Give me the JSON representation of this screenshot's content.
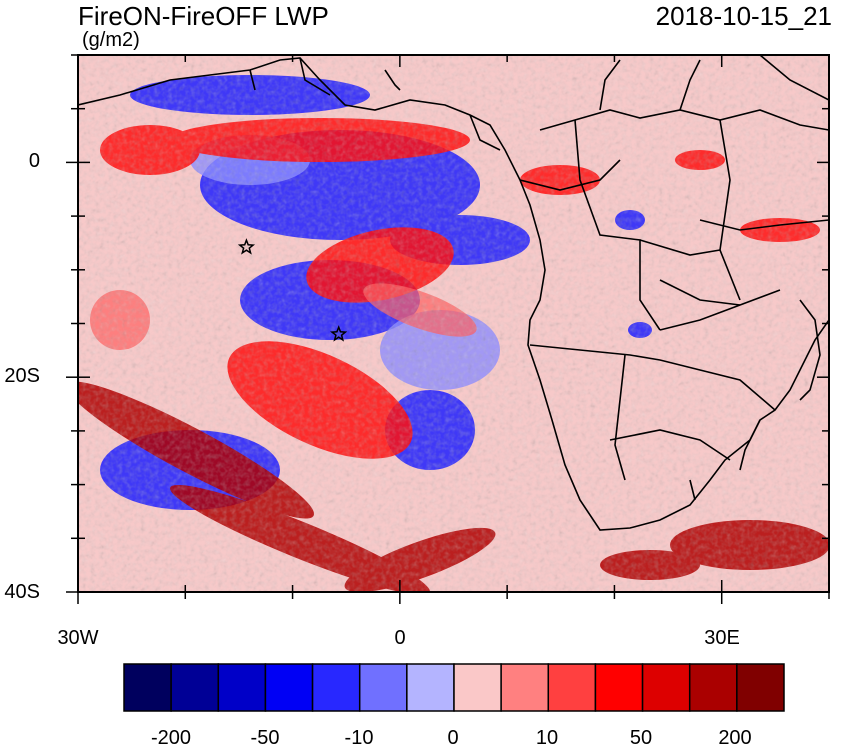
{
  "header": {
    "title": "FireON-FireOFF LWP",
    "units": "(g/m2)",
    "datetime": "2018-10-15_21"
  },
  "map": {
    "lon_range": [
      -30,
      40
    ],
    "lat_range": [
      -40,
      10
    ],
    "y_tick_labels": [
      "0",
      "20S",
      "40S"
    ],
    "x_tick_labels": [
      "30W",
      "0",
      "30E"
    ],
    "background_color": "#f7c9c9",
    "markers": [
      {
        "type": "star",
        "lon": -14.3,
        "lat": -7.9
      },
      {
        "type": "star",
        "lon": -5.7,
        "lat": -16.0
      }
    ]
  },
  "colorbar": {
    "colors": [
      "#00005e",
      "#000096",
      "#0000c8",
      "#0000f5",
      "#2828ff",
      "#7070ff",
      "#b4b4ff",
      "#fac8c8",
      "#ff8080",
      "#ff4040",
      "#ff0000",
      "#dd0000",
      "#aa0000",
      "#800000"
    ],
    "labels": [
      "-200",
      "-50",
      "-10",
      "0",
      "10",
      "50",
      "200"
    ]
  }
}
